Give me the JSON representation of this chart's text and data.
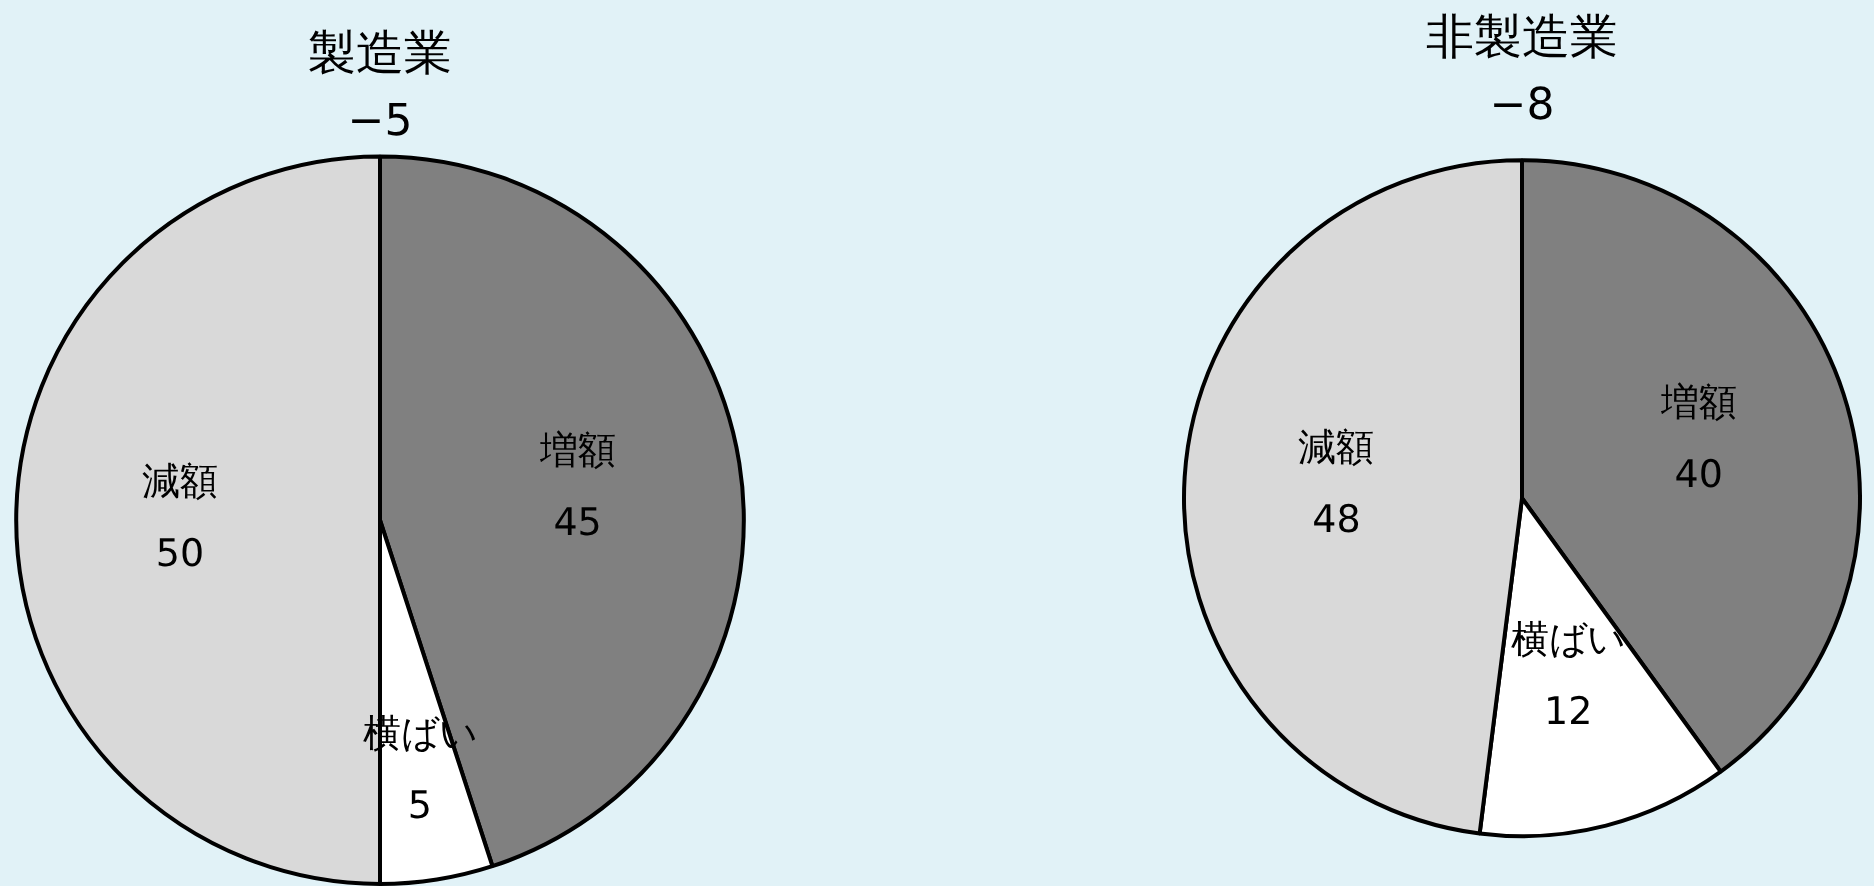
{
  "chart_data": [
    {
      "type": "pie",
      "title": "製造業",
      "subtitle": "−5",
      "categories": [
        "増額",
        "横ばい",
        "減額"
      ],
      "values": [
        45,
        5,
        50
      ],
      "colors": [
        "#808080",
        "#ffffff",
        "#d9d9d9"
      ],
      "data_labels": true
    },
    {
      "type": "pie",
      "title": "非製造業",
      "subtitle": "−8",
      "categories": [
        "増額",
        "横ばい",
        "減額"
      ],
      "values": [
        40,
        12,
        48
      ],
      "colors": [
        "#808080",
        "#ffffff",
        "#d9d9d9"
      ],
      "data_labels": true
    }
  ]
}
